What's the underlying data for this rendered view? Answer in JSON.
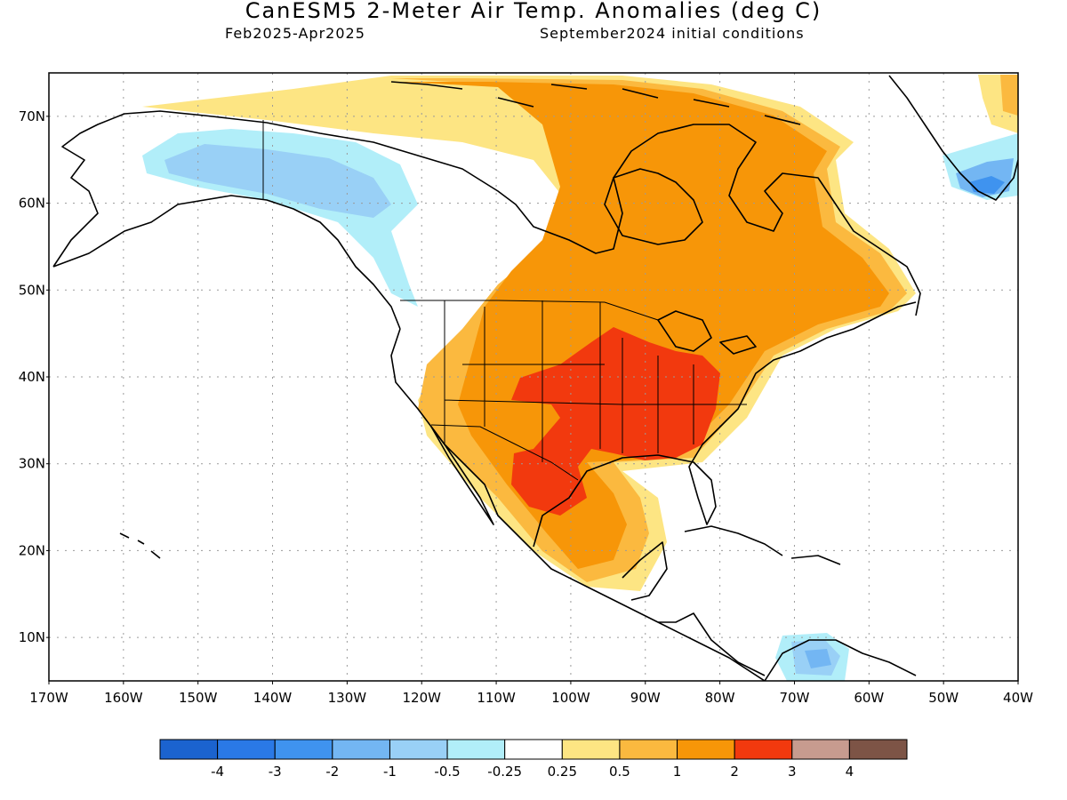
{
  "title": "CanESM5 2-Meter Air Temp. Anomalies (deg C)",
  "subtitle_left": "Feb2025-Apr2025",
  "subtitle_right": "September2024 initial conditions",
  "lat_labels": [
    "70N",
    "60N",
    "50N",
    "40N",
    "30N",
    "20N",
    "10N"
  ],
  "lon_labels": [
    "170W",
    "160W",
    "150W",
    "140W",
    "130W",
    "120W",
    "110W",
    "100W",
    "90W",
    "80W",
    "70W",
    "60W",
    "50W",
    "40W"
  ],
  "colorbar": {
    "colors": [
      "#1b63cf",
      "#2a79e6",
      "#3f93ef",
      "#73b6f3",
      "#99d0f6",
      "#b1eef9",
      "#ffffff",
      "#fde583",
      "#fbb93f",
      "#f79608",
      "#f2390e",
      "#c79b8f",
      "#7d5446"
    ],
    "labels": [
      "-4",
      "-3",
      "-2",
      "-1",
      "-0.5",
      "-0.25",
      "0.25",
      "0.5",
      "1",
      "2",
      "3",
      "4"
    ]
  },
  "legend_units": "deg C"
}
